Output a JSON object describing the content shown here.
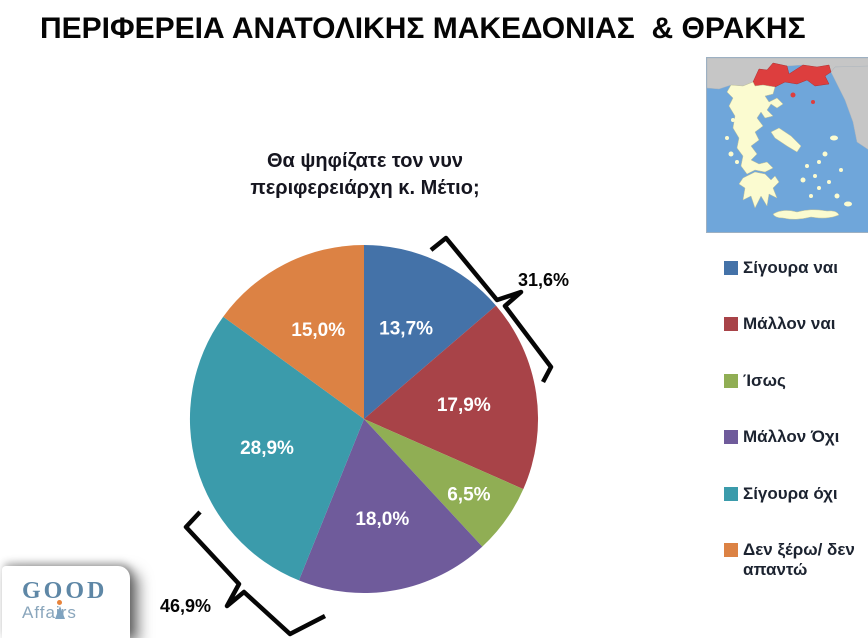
{
  "title": "ΠΕΡΙΦΕΡΕΙΑ ΑΝΑΤΟΛΙΚΗΣ ΜΑΚΕΔΟΝΙΑΣ  & ΘΡΑΚΗΣ",
  "chart_data": {
    "type": "pie",
    "title": "Θα ψηφίζατε τον νυν περιφερειάρχη κ. Μέτιο;",
    "start_angle_deg": 0,
    "direction": "clockwise",
    "legend_position": "right",
    "value_format": "comma-decimal percent",
    "slices": [
      {
        "label": "Σίγουρα ναι",
        "value": 13.7,
        "display": "13,7%",
        "color": "#4472a8"
      },
      {
        "label": "Μάλλον ναι",
        "value": 17.9,
        "display": "17,9%",
        "color": "#a84348"
      },
      {
        "label": "Ίσως",
        "value": 6.5,
        "display": "6,5%",
        "color": "#90ae54"
      },
      {
        "label": "Μάλλον Όχι",
        "value": 18.0,
        "display": "18,0%",
        "color": "#6f5b9b"
      },
      {
        "label": "Σίγουρα όχι",
        "value": 28.9,
        "display": "28,9%",
        "color": "#3b9bab"
      },
      {
        "label": "Δεν ξέρω/ δεν απαντώ",
        "value": 15.0,
        "display": "15,0%",
        "color": "#dc8244"
      }
    ],
    "annotations": [
      {
        "text": "31,6%",
        "value": 31.6,
        "meaning": "Σίγουρα ναι + Μάλλον ναι"
      },
      {
        "text": "46,9%",
        "value": 46.9,
        "meaning": "Μάλλον Όχι + Σίγουρα όχι"
      }
    ]
  },
  "map": {
    "description": "Greece locator map with Eastern Macedonia and Thrace highlighted",
    "sea_color": "#6fa6da",
    "land_color": "#fbfbd0",
    "neighbor_color": "#c6c6c6",
    "highlight_color": "#dd3e3e"
  },
  "logo": {
    "line1": "GOOD",
    "line2": "Affairs",
    "accent_color": "#e8833a",
    "text_color": "#5e87a6"
  }
}
